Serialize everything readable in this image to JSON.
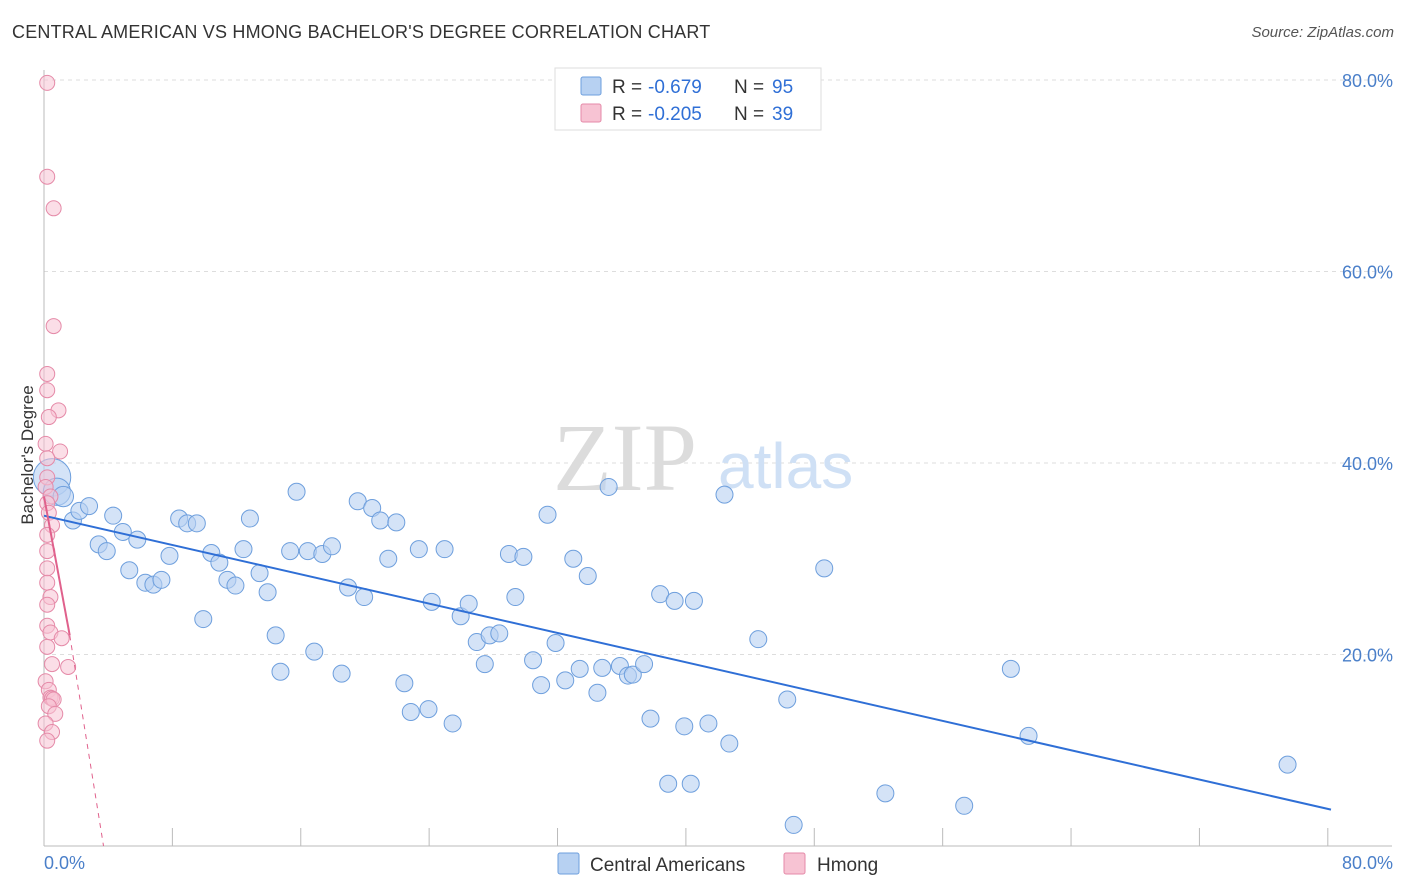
{
  "title": "CENTRAL AMERICAN VS HMONG BACHELOR'S DEGREE CORRELATION CHART",
  "source": "Source: ZipAtlas.com",
  "watermark": {
    "part1": "ZIP",
    "part2": "atlas"
  },
  "legend_top": {
    "rows": [
      {
        "r_label": "R =",
        "r_value": "-0.679",
        "n_label": "N =",
        "n_value": "95"
      },
      {
        "r_label": "R =",
        "r_value": "-0.205",
        "n_label": "N =",
        "n_value": "39"
      }
    ]
  },
  "legend_bottom": {
    "items": [
      {
        "label": "Central Americans"
      },
      {
        "label": "Hmong"
      }
    ]
  },
  "colors": {
    "blue_fill": "#b7d1f2",
    "blue_stroke": "#6e9fdd",
    "blue_line": "#2f6fd6",
    "pink_fill": "#f7c3d3",
    "pink_stroke": "#e58aa8",
    "pink_line": "#e0618c",
    "grid": "#dddddd",
    "tick_text": "#4a7fc9"
  },
  "chart_data": {
    "type": "scatter",
    "title": "CENTRAL AMERICAN VS HMONG BACHELOR'S DEGREE CORRELATION CHART",
    "xlabel": "",
    "ylabel": "Bachelor's Degree",
    "xlim": [
      0,
      80
    ],
    "ylim": [
      0,
      80
    ],
    "x_tick_labels": [
      "0.0%",
      "80.0%"
    ],
    "y_tick_labels": [
      "20.0%",
      "40.0%",
      "60.0%",
      "80.0%"
    ],
    "y_ticks": [
      20,
      40,
      60,
      80
    ],
    "grid": true,
    "series": [
      {
        "name": "Central Americans",
        "color": "#b7d1f2",
        "r": -0.679,
        "n": 95,
        "trend": {
          "x": [
            0,
            80
          ],
          "y": [
            34.5,
            3.8
          ],
          "dashed_to": null
        },
        "points": [
          [
            0.5,
            38.5,
            2.2
          ],
          [
            0.8,
            37.0,
            1.6
          ],
          [
            1.2,
            36.5,
            1.2
          ],
          [
            1.8,
            34.0,
            1
          ],
          [
            2.2,
            35.0,
            1
          ],
          [
            2.8,
            35.5,
            1
          ],
          [
            4.3,
            34.5,
            1
          ],
          [
            4.9,
            32.8,
            1
          ],
          [
            3.4,
            31.5,
            1
          ],
          [
            3.9,
            30.8,
            1
          ],
          [
            5.8,
            32.0,
            1
          ],
          [
            5.3,
            28.8,
            1
          ],
          [
            6.3,
            27.5,
            1
          ],
          [
            6.8,
            27.3,
            1
          ],
          [
            7.3,
            27.8,
            1
          ],
          [
            7.8,
            30.3,
            1
          ],
          [
            8.4,
            34.2,
            1
          ],
          [
            8.9,
            33.7,
            1
          ],
          [
            9.5,
            33.7,
            1
          ],
          [
            9.9,
            23.7,
            1
          ],
          [
            10.4,
            30.6,
            1
          ],
          [
            10.9,
            29.6,
            1
          ],
          [
            11.4,
            27.8,
            1
          ],
          [
            11.9,
            27.2,
            1
          ],
          [
            12.4,
            31.0,
            1
          ],
          [
            12.8,
            34.2,
            1
          ],
          [
            13.4,
            28.5,
            1
          ],
          [
            13.9,
            26.5,
            1
          ],
          [
            14.4,
            22.0,
            1
          ],
          [
            14.7,
            18.2,
            1
          ],
          [
            15.3,
            30.8,
            1
          ],
          [
            15.7,
            37.0,
            1
          ],
          [
            16.4,
            30.8,
            1
          ],
          [
            16.8,
            20.3,
            1
          ],
          [
            17.3,
            30.5,
            1
          ],
          [
            17.9,
            31.3,
            1
          ],
          [
            18.5,
            18.0,
            1
          ],
          [
            18.9,
            27.0,
            1
          ],
          [
            19.5,
            36.0,
            1
          ],
          [
            19.9,
            26.0,
            1
          ],
          [
            20.4,
            35.3,
            1
          ],
          [
            20.9,
            34.0,
            1
          ],
          [
            21.4,
            30.0,
            1
          ],
          [
            21.9,
            33.8,
            1
          ],
          [
            22.4,
            17.0,
            1
          ],
          [
            22.8,
            14.0,
            1
          ],
          [
            23.3,
            31.0,
            1
          ],
          [
            23.9,
            14.3,
            1
          ],
          [
            24.1,
            25.5,
            1
          ],
          [
            24.9,
            31.0,
            1
          ],
          [
            25.4,
            12.8,
            1
          ],
          [
            25.9,
            24.0,
            1
          ],
          [
            26.4,
            25.3,
            1
          ],
          [
            26.9,
            21.3,
            1
          ],
          [
            27.4,
            19.0,
            1
          ],
          [
            27.7,
            22.0,
            1
          ],
          [
            28.3,
            22.2,
            1
          ],
          [
            28.9,
            30.5,
            1
          ],
          [
            29.3,
            26.0,
            1
          ],
          [
            29.8,
            30.2,
            1
          ],
          [
            30.4,
            19.4,
            1
          ],
          [
            30.9,
            16.8,
            1
          ],
          [
            31.3,
            34.6,
            1
          ],
          [
            31.8,
            21.2,
            1
          ],
          [
            32.4,
            17.3,
            1
          ],
          [
            32.9,
            30.0,
            1
          ],
          [
            33.3,
            18.5,
            1
          ],
          [
            33.8,
            28.2,
            1
          ],
          [
            34.4,
            16.0,
            1
          ],
          [
            34.7,
            18.6,
            1
          ],
          [
            35.1,
            37.5,
            1
          ],
          [
            35.8,
            18.8,
            1
          ],
          [
            36.3,
            17.8,
            1
          ],
          [
            36.6,
            17.9,
            1
          ],
          [
            37.3,
            19.0,
            1
          ],
          [
            37.7,
            13.3,
            1
          ],
          [
            38.3,
            26.3,
            1
          ],
          [
            38.8,
            6.5,
            1
          ],
          [
            39.2,
            25.6,
            1
          ],
          [
            39.8,
            12.5,
            1
          ],
          [
            40.2,
            6.5,
            1
          ],
          [
            40.4,
            25.6,
            1
          ],
          [
            41.3,
            12.8,
            1
          ],
          [
            42.3,
            36.7,
            1
          ],
          [
            42.6,
            10.7,
            1
          ],
          [
            44.4,
            21.6,
            1
          ],
          [
            46.2,
            15.3,
            1
          ],
          [
            46.6,
            2.2,
            1
          ],
          [
            48.5,
            29.0,
            1
          ],
          [
            52.3,
            5.5,
            1
          ],
          [
            57.2,
            4.2,
            1
          ],
          [
            60.1,
            18.5,
            1
          ],
          [
            61.2,
            11.5,
            1
          ],
          [
            77.3,
            8.5,
            1
          ]
        ]
      },
      {
        "name": "Hmong",
        "color": "#f7c3d3",
        "r": -0.205,
        "n": 39,
        "trend": {
          "x": [
            0,
            1.6
          ],
          "y": [
            36.5,
            22.0
          ],
          "dashed_to": [
            3.7,
            0
          ]
        },
        "points": [
          [
            0.2,
            79.7
          ],
          [
            0.2,
            69.9
          ],
          [
            0.6,
            66.6
          ],
          [
            0.6,
            54.3
          ],
          [
            0.2,
            49.3
          ],
          [
            0.2,
            47.6
          ],
          [
            0.9,
            45.5
          ],
          [
            0.3,
            44.8
          ],
          [
            0.1,
            42.0
          ],
          [
            1.0,
            41.2
          ],
          [
            0.2,
            40.5
          ],
          [
            0.2,
            38.5
          ],
          [
            0.1,
            37.5
          ],
          [
            0.4,
            36.5
          ],
          [
            0.2,
            35.8
          ],
          [
            0.3,
            34.8
          ],
          [
            0.5,
            33.5
          ],
          [
            0.2,
            32.5
          ],
          [
            0.2,
            30.8
          ],
          [
            0.2,
            29.0
          ],
          [
            0.2,
            27.5
          ],
          [
            0.4,
            26.0
          ],
          [
            0.2,
            25.2
          ],
          [
            0.2,
            23.0
          ],
          [
            0.4,
            22.3
          ],
          [
            1.1,
            21.7
          ],
          [
            0.2,
            20.8
          ],
          [
            0.5,
            19.0
          ],
          [
            1.5,
            18.7
          ],
          [
            0.1,
            17.2
          ],
          [
            0.3,
            16.3
          ],
          [
            0.4,
            15.5
          ],
          [
            0.5,
            15.4
          ],
          [
            0.6,
            15.3
          ],
          [
            0.3,
            14.6
          ],
          [
            0.7,
            13.8
          ],
          [
            0.1,
            12.8
          ],
          [
            0.5,
            11.9
          ],
          [
            0.2,
            11.0
          ]
        ]
      }
    ]
  }
}
